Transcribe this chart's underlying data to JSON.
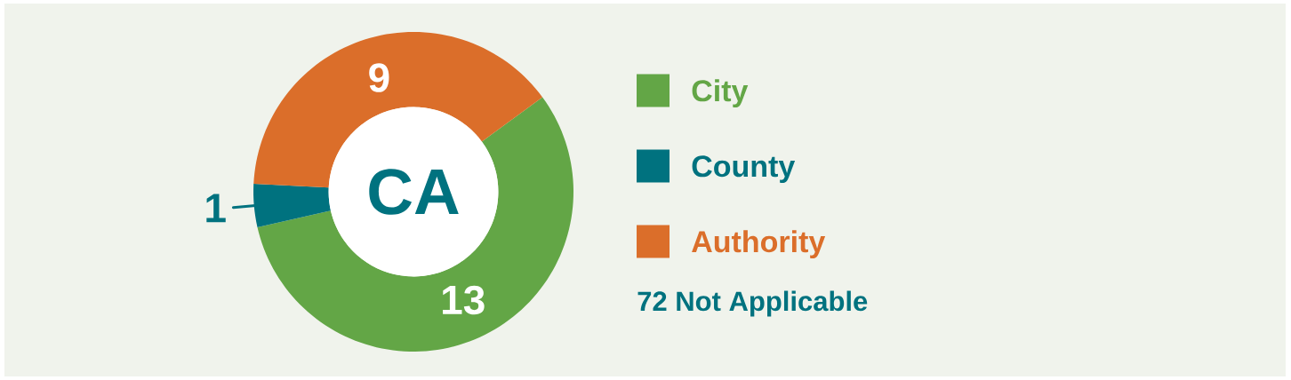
{
  "chart_data": {
    "type": "donut",
    "title": "CA",
    "categories": [
      "City",
      "County",
      "Authority"
    ],
    "values": [
      13,
      1,
      9
    ],
    "colors": [
      "#63a646",
      "#00727f",
      "#db6e2a"
    ],
    "data_labels": true,
    "legend": "right",
    "annotations": [
      "72 Not Applicable"
    ]
  }
}
